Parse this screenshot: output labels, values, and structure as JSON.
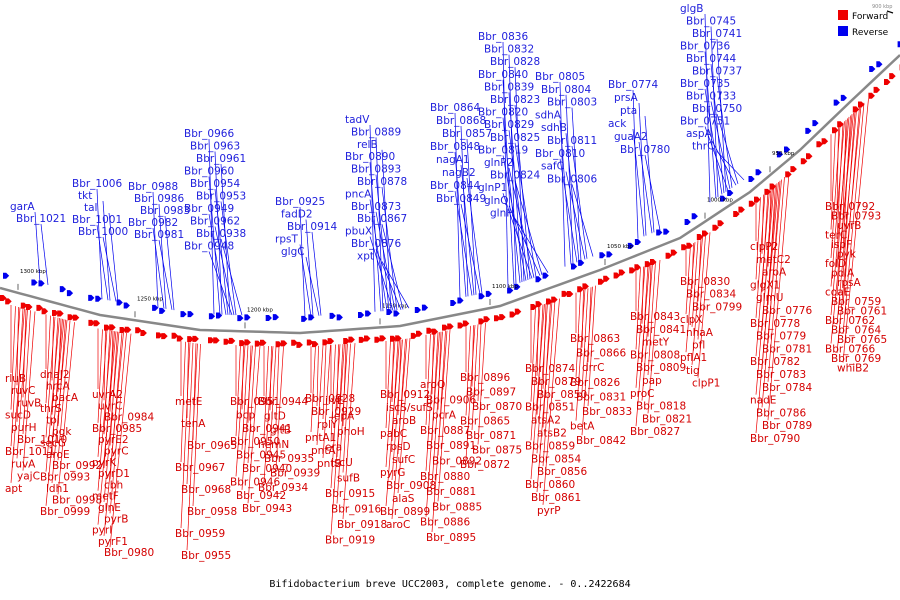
{
  "caption": "Bifidobacterium breve UCC2003, complete genome. - 0..2422684",
  "corner_label": "900 kbp",
  "legend": [
    {
      "label": "Forward",
      "color": "#ee0000"
    },
    {
      "label": "Reverse",
      "color": "#0000ee"
    }
  ],
  "colors": {
    "forward": "#ee0000",
    "reverse": "#0000ee",
    "backbone": "#888888"
  },
  "ticks": [
    "1300 kbp",
    "1250 kbp",
    "1200 kbp",
    "1150 kbp",
    "1100 kbp",
    "1050 kbp",
    "1000 kbp",
    "950 kbp"
  ],
  "reverse_labels": [
    "garA",
    "Bbr_1021",
    "Bbr_1006",
    "tkt",
    "tal",
    "Bbr_1001",
    "Bbr_1000",
    "Bbr_0988",
    "Bbr_0986",
    "Bbr_0983",
    "Bbr_0982",
    "Bbr_0981",
    "Bbr_0966",
    "Bbr_0963",
    "Bbr_0961",
    "Bbr_0960",
    "Bbr_0954",
    "Bbr_0953",
    "Bbr_0949",
    "Bbr_0962",
    "Bbr_0938",
    "Bbr_0948",
    "Bbr_0925",
    "fadD2",
    "Bbr_0914",
    "rpsT",
    "glgC",
    "tadV",
    "Bbr_0889",
    "relB",
    "Bbr_0890",
    "Bbr_0893",
    "Bbr_0878",
    "pncA",
    "Bbr_0873",
    "Bbr_0867",
    "pbuX",
    "Bbr_0876",
    "xpt",
    "Bbr_0864",
    "Bbr_0868",
    "Bbr_0857",
    "Bbr_0848",
    "nagA1",
    "nagB2",
    "Bbr_0844",
    "Bbr_0849",
    "Bbr_0836",
    "Bbr_0832",
    "Bbr_0828",
    "Bbr_0840",
    "Bbr_0839",
    "Bbr_0823",
    "Bbr_0820",
    "Bbr_0829",
    "Bbr_0825",
    "Bbr_0819",
    "glnP2",
    "Bbr_0824",
    "glnP1",
    "glnQ",
    "glnH",
    "Bbr_0805",
    "Bbr_0804",
    "Bbr_0803",
    "sdhA",
    "sdhB",
    "Bbr_0811",
    "Bbr_0810",
    "safC",
    "Bbr_0806",
    "Bbr_0774",
    "prsA",
    "pta",
    "ack",
    "guaA2",
    "Bbr_0780",
    "glgB",
    "Bbr_0745",
    "Bbr_0741",
    "Bbr_0736",
    "Bbr_0744",
    "Bbr_0737",
    "Bbr_0735",
    "Bbr_0733",
    "Bbr_0750",
    "Bbr_0751",
    "aspA",
    "thrC"
  ],
  "forward_labels": [
    "rluB",
    "ruvC",
    "ruvB",
    "sucD",
    "purH",
    "Bbr_1010",
    "Bbr_1011",
    "ruvA",
    "yajC",
    "apt",
    "dnaJ2",
    "hrcA",
    "bacA",
    "thrS",
    "tpi",
    "pgk",
    "secG",
    "aroE",
    "Bbr_0992",
    "Bbr_0993",
    "ldh1",
    "Bbr_0998",
    "Bbr_0999",
    "uvrA2",
    "uvrC",
    "Bbr_0984",
    "Bbr_0985",
    "pyrE2",
    "pyrC",
    "pyrK",
    "pyrD1",
    "cbh",
    "metF",
    "glnE",
    "pyrB",
    "pyrI",
    "pyrF1",
    "Bbr_0980",
    "metE",
    "tenA",
    "Bbr_0965",
    "Bbr_0967",
    "Bbr_0968",
    "Bbr_0958",
    "Bbr_0959",
    "Bbr_0955",
    "Bbr_0951",
    "bcp",
    "Bbr_0941",
    "Bbr_0950",
    "Bbr_0945",
    "Bbr_0940",
    "Bbr_0946",
    "Bbr_0942",
    "Bbr_0943",
    "Bbr_0944",
    "gltD",
    "gltB",
    "hemN",
    "Bbr_0935",
    "Bbr_0939",
    "Bbr_0934",
    "Bbr_0928",
    "Bbr_0929",
    "rplY",
    "pntA1",
    "pntA",
    "pntB",
    "ilvE",
    "lepA",
    "phoH",
    "era",
    "iscU",
    "sufB",
    "Bbr_0915",
    "Bbr_0916",
    "Bbr_0918",
    "Bbr_0919",
    "Bbr_0912",
    "iscS/sufS",
    "aroB",
    "pabC",
    "rpsD",
    "sufC",
    "pyrG",
    "Bbr_0908",
    "alaS",
    "Bbr_0899",
    "aroC",
    "aroQ",
    "Bbr_0906",
    "pcrA",
    "Bbr_0887",
    "Bbr_0891",
    "Bbr_0892",
    "Bbr_0880",
    "Bbr_0881",
    "Bbr_0885",
    "Bbr_0886",
    "Bbr_0895",
    "Bbr_0896",
    "Bbr_0897",
    "Bbr_0870",
    "Bbr_0865",
    "Bbr_0871",
    "Bbr_0875",
    "Bbr_0872",
    "Bbr_0874",
    "Bbr_0879",
    "Bbr_0850",
    "Bbr_0851",
    "atsA2",
    "atsB2",
    "Bbr_0859",
    "Bbr_0854",
    "Bbr_0856",
    "Bbr_0860",
    "Bbr_0861",
    "pyrP",
    "Bbr_0863",
    "Bbr_0866",
    "drrC",
    "Bbr_0826",
    "Bbr_0831",
    "Bbr_0833",
    "betA",
    "Bbr_0842",
    "Bbr_0843",
    "Bbr_0841",
    "metY",
    "Bbr_0808",
    "Bbr_0809",
    "pap",
    "proC",
    "Bbr_0818",
    "Bbr_0821",
    "Bbr_0827",
    "Bbr_0830",
    "Bbr_0834",
    "Bbr_0799",
    "clpX",
    "nhaA",
    "pfl",
    "pflA1",
    "tig",
    "clpP1",
    "clpP2",
    "metC2",
    "aroA",
    "glgX1",
    "glmU",
    "Bbr_0776",
    "Bbr_0778",
    "Bbr_0779",
    "Bbr_0781",
    "Bbr_0782",
    "Bbr_0783",
    "Bbr_0784",
    "nadE",
    "Bbr_0786",
    "Bbr_0789",
    "Bbr_0790",
    "Bbr_0792",
    "Bbr_0793",
    "uvrB",
    "terC",
    "ispF",
    "pyk",
    "folD",
    "polA",
    "rpsA",
    "coaE",
    "Bbr_0759",
    "Bbr_0761",
    "Bbr_0762",
    "Bbr_0764",
    "Bbr_0765",
    "Bbr_0766",
    "Bbr_0769",
    "whiB2",
    "Bbr_0742",
    "Bbr_0747"
  ]
}
